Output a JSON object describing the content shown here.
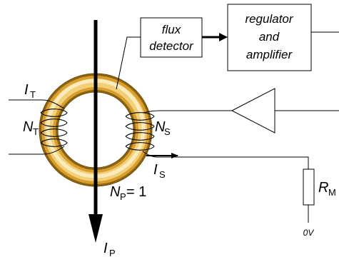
{
  "blocks": {
    "flux_detector": {
      "line1": "flux",
      "line2": "detector"
    },
    "regulator": {
      "line1": "regulator",
      "line2": "and",
      "line3": "amplifier"
    }
  },
  "labels": {
    "it": {
      "main": "I",
      "sub": "T"
    },
    "nt": {
      "main": "N",
      "sub": "T"
    },
    "ns": {
      "main": "N",
      "sub": "S"
    },
    "is": {
      "main": "I",
      "sub": "S"
    },
    "np": {
      "main": "N",
      "sub": "P",
      "suffix": " = 1"
    },
    "ip": {
      "main": "I",
      "sub": "P"
    },
    "rm": {
      "main": "R",
      "sub": "M"
    },
    "zero_v": "0V"
  },
  "colors": {
    "core_outer": "#8a6410",
    "core_mid": "#e0a838",
    "core_light": "#f7e3a6",
    "wire": "#000000"
  }
}
